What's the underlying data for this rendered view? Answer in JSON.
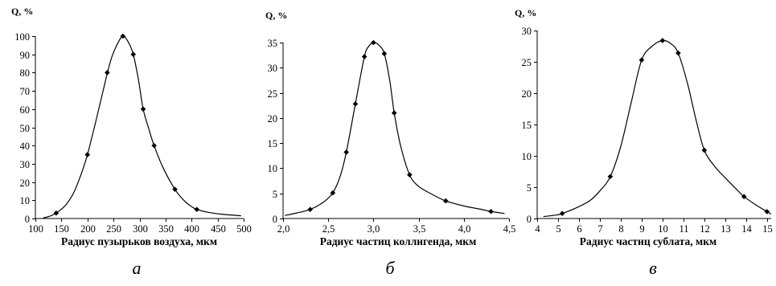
{
  "chart_data": [
    {
      "type": "line",
      "caption": "а",
      "ylabel": "Q, %",
      "xlabel": "Радиус пузырьков воздуха, мкм",
      "xlim": [
        100,
        500
      ],
      "ylim": [
        0,
        100
      ],
      "xticks": [
        100,
        150,
        200,
        250,
        300,
        350,
        400,
        450,
        500
      ],
      "yticks": [
        0,
        10,
        20,
        30,
        40,
        50,
        60,
        70,
        80,
        90,
        100
      ],
      "xtick_labels": [
        "100",
        "150",
        "200",
        "250",
        "300",
        "350",
        "400",
        "450",
        "500"
      ],
      "ytick_labels": [
        "0",
        "10",
        "20",
        "30",
        "40",
        "50",
        "60",
        "70",
        "80",
        "90",
        "100"
      ],
      "points": {
        "x": [
          140,
          200,
          238,
          268,
          288,
          307,
          328,
          368,
          410
        ],
        "y": [
          3,
          35,
          80,
          100,
          90,
          60,
          40,
          16,
          5
        ]
      },
      "curve": {
        "x": [
          115,
          130,
          145,
          160,
          175,
          190,
          200,
          215,
          230,
          245,
          258,
          268,
          278,
          288,
          298,
          307,
          318,
          328,
          345,
          368,
          385,
          400,
          410,
          430,
          460,
          495
        ],
        "y": [
          0.3,
          1.5,
          4,
          8,
          15,
          26,
          35,
          52,
          70,
          87,
          96,
          100,
          97,
          90,
          76,
          60,
          49,
          40,
          28,
          16,
          10,
          6.5,
          5,
          3.5,
          2.3,
          1.5
        ]
      }
    },
    {
      "type": "line",
      "caption": "б",
      "ylabel": "Q, %",
      "xlabel": "Радиус частиц коллигенда, мкм",
      "xlim": [
        2.0,
        4.5
      ],
      "ylim": [
        0,
        35
      ],
      "xticks": [
        2.0,
        2.5,
        3.0,
        3.5,
        4.0,
        4.5
      ],
      "yticks": [
        0,
        5,
        10,
        15,
        20,
        25,
        30,
        35
      ],
      "xtick_labels": [
        "2,0",
        "2,5",
        "3,0",
        "3,5",
        "4,0",
        "4,5"
      ],
      "ytick_labels": [
        "0",
        "5",
        "10",
        "15",
        "20",
        "25",
        "30",
        "35"
      ],
      "points": {
        "x": [
          2.3,
          2.55,
          2.7,
          2.8,
          2.9,
          3.0,
          3.12,
          3.23,
          3.4,
          3.8,
          4.3
        ],
        "y": [
          1.8,
          5.1,
          13.2,
          22.8,
          32.2,
          35,
          32.8,
          21,
          8.7,
          3.5,
          1.4
        ]
      },
      "curve": {
        "x": [
          2.02,
          2.15,
          2.3,
          2.45,
          2.55,
          2.63,
          2.7,
          2.8,
          2.9,
          2.95,
          3.0,
          3.06,
          3.12,
          3.18,
          3.23,
          3.3,
          3.4,
          3.5,
          3.65,
          3.8,
          4.0,
          4.2,
          4.3,
          4.45
        ],
        "y": [
          0.6,
          1.1,
          1.8,
          3.3,
          5.1,
          8.3,
          13.2,
          22.8,
          32.2,
          34.3,
          35,
          34.5,
          32.8,
          27.5,
          21,
          14.5,
          8.7,
          6.4,
          4.8,
          3.5,
          2.5,
          1.8,
          1.4,
          1.0
        ]
      }
    },
    {
      "type": "line",
      "caption": "в",
      "ylabel": "Q, %",
      "xlabel": "Радиус частиц сублата, мкм",
      "xlim": [
        4,
        15.2
      ],
      "ylim": [
        0,
        30
      ],
      "xticks": [
        4,
        5,
        6,
        7,
        8,
        9,
        10,
        11,
        12,
        13,
        14,
        15
      ],
      "yticks": [
        0,
        5,
        10,
        15,
        20,
        25,
        30
      ],
      "xtick_labels": [
        "4",
        "5",
        "6",
        "7",
        "8",
        "9",
        "10",
        "11",
        "12",
        "13",
        "14",
        "15"
      ],
      "ytick_labels": [
        "0",
        "5",
        "10",
        "15",
        "20",
        "25",
        "30"
      ],
      "points": {
        "x": [
          5.2,
          7.5,
          9.0,
          10.0,
          10.75,
          12.0,
          13.9,
          15.0
        ],
        "y": [
          0.8,
          6.7,
          25.3,
          28.4,
          26.4,
          10.9,
          3.5,
          1.1
        ]
      },
      "curve": {
        "x": [
          4.3,
          5.0,
          5.2,
          5.8,
          6.5,
          7.0,
          7.5,
          8.0,
          8.5,
          9.0,
          9.5,
          10.0,
          10.4,
          10.75,
          11.2,
          11.6,
          12.0,
          12.5,
          13.0,
          13.5,
          13.9,
          14.5,
          15.0,
          15.2
        ],
        "y": [
          0.3,
          0.6,
          0.8,
          1.6,
          2.8,
          4.4,
          6.7,
          11.5,
          18.5,
          25.3,
          27.5,
          28.4,
          27.9,
          26.4,
          21.5,
          15.8,
          10.9,
          8.3,
          6.5,
          4.8,
          3.5,
          2.1,
          1.1,
          0.7
        ]
      }
    }
  ]
}
